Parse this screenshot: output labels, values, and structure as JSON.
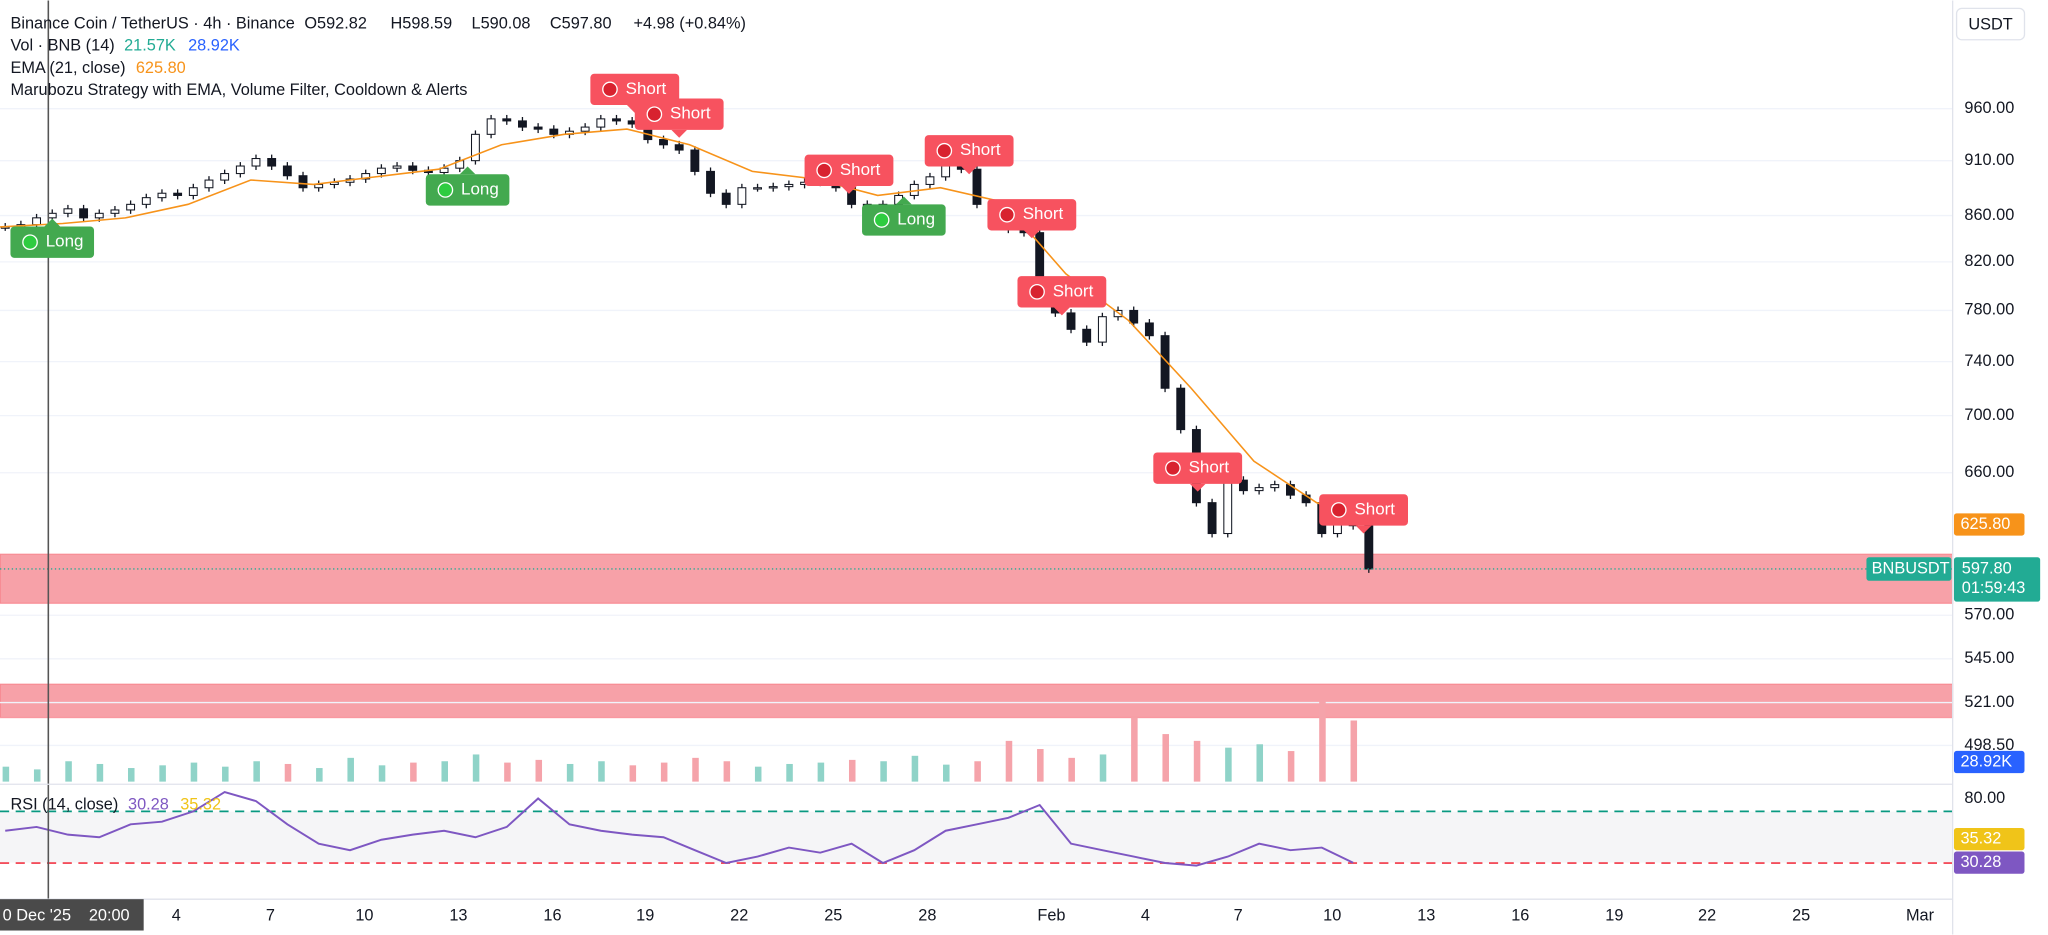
{
  "header": {
    "symbol": "Binance Coin / TetherUS · 4h · Binance",
    "open": "O592.82",
    "high": "H598.59",
    "low": "L590.08",
    "close": "C597.80",
    "change": "+4.98 (+0.84%)",
    "volume_title": "Vol · BNB (14)",
    "volume_value": "21.57K",
    "volume_ma": "28.92K",
    "ema_title": "EMA (21, close)",
    "ema_value": "625.80",
    "strategy": "Marubozu Strategy with EMA, Volume Filter, Cooldown & Alerts"
  },
  "currency": "USDT",
  "price_chart": {
    "ylim": [
      479,
      1073
    ],
    "log_scale": true,
    "yticks": [
      {
        "value": 960,
        "label": "960.00"
      },
      {
        "value": 910,
        "label": "910.00"
      },
      {
        "value": 860,
        "label": "860.00"
      },
      {
        "value": 820,
        "label": "820.00"
      },
      {
        "value": 780,
        "label": "780.00"
      },
      {
        "value": 740,
        "label": "740.00"
      },
      {
        "value": 700,
        "label": "700.00"
      },
      {
        "value": 660,
        "label": "660.00"
      },
      {
        "value": 570,
        "label": "570.00"
      },
      {
        "value": 545,
        "label": "545.00"
      },
      {
        "value": 521,
        "label": "521.00"
      },
      {
        "value": 498.5,
        "label": "498.50"
      }
    ],
    "closes": [
      850,
      852,
      858,
      862,
      866,
      858,
      862,
      865,
      870,
      876,
      880,
      878,
      885,
      892,
      898,
      905,
      912,
      905,
      896,
      885,
      888,
      890,
      893,
      898,
      903,
      905,
      901,
      899,
      903,
      910,
      935,
      950,
      948,
      942,
      940,
      935,
      938,
      942,
      950,
      948,
      945,
      930,
      925,
      920,
      900,
      880,
      870,
      885,
      885,
      886,
      888,
      890,
      890,
      885,
      870,
      862,
      870,
      878,
      888,
      895,
      905,
      902,
      870,
      855,
      848,
      845,
      800,
      778,
      765,
      755,
      775,
      780,
      770,
      760,
      720,
      690,
      640,
      620,
      655,
      648,
      650,
      652,
      645,
      640,
      620,
      630,
      625,
      597.8
    ],
    "ema": [
      850,
      853,
      858,
      870,
      892,
      888,
      895,
      902,
      925,
      935,
      940,
      925,
      900,
      893,
      878,
      885,
      872,
      810,
      772,
      720,
      668,
      640,
      625.8
    ],
    "zones": [
      [
        607,
        577
      ],
      [
        531,
        513
      ]
    ],
    "signals": [
      "Long",
      "Long",
      "Short",
      "Short",
      "Short",
      "Long",
      "Short",
      "Short",
      "Short",
      "Short",
      "Short"
    ],
    "symbol_tag": "BNBUSDT",
    "last_price": {
      "value": 597.8,
      "label": "597.80"
    },
    "countdown": "01:59:43",
    "ema_tag": {
      "value": 625.8,
      "label": "625.80"
    }
  },
  "volume": {
    "values": [
      22,
      18,
      30,
      26,
      20,
      24,
      28,
      22,
      30,
      26,
      20,
      35,
      24,
      28,
      30,
      40,
      28,
      32,
      26,
      30,
      24,
      28,
      35,
      30,
      22,
      26,
      28,
      32,
      30,
      38,
      25,
      30,
      60,
      48,
      35,
      40,
      95,
      70,
      60,
      50,
      55,
      45,
      120,
      90
    ],
    "tag": "28.92K"
  },
  "rsi": {
    "title": "RSI (14, close)",
    "value_label": "30.28",
    "ma_label": "35.32",
    "ylim": [
      0,
      88
    ],
    "levels": [
      70,
      30
    ],
    "ytick": {
      "value": 80,
      "label": "80.00"
    },
    "values": [
      55,
      58,
      52,
      50,
      60,
      62,
      70,
      85,
      78,
      60,
      45,
      40,
      48,
      52,
      55,
      50,
      58,
      80,
      60,
      55,
      52,
      50,
      40,
      30,
      35,
      42,
      38,
      45,
      30,
      40,
      55,
      60,
      65,
      75,
      45,
      40,
      35,
      30,
      28,
      35,
      45,
      40,
      42,
      30.28
    ],
    "ma_tag": {
      "value": 35.32,
      "label": "35.32"
    },
    "value_tag": {
      "value": 30.28,
      "label": "30.28"
    }
  },
  "time_axis": [
    "4",
    "7",
    "10",
    "13",
    "16",
    "19",
    "22",
    "25",
    "28",
    "Feb",
    "4",
    "7",
    "10",
    "13",
    "16",
    "19",
    "22",
    "25",
    "Mar"
  ],
  "crosshair": {
    "date": "0 Dec '25",
    "time": "20:00"
  }
}
